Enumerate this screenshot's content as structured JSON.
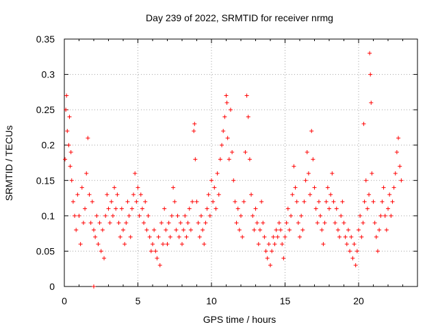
{
  "chart_data": {
    "type": "scatter",
    "title": "Day 239 of 2022, SRMTID for receiver nrmg",
    "xlabel": "GPS time / hours",
    "ylabel": "SRMTID / TECUs",
    "xlim": [
      0,
      24
    ],
    "ylim": [
      0,
      0.35
    ],
    "grid": true,
    "marker": "+",
    "color": "#ff0000",
    "x_ticks": [
      0,
      5,
      10,
      15,
      20
    ],
    "x_tick_labels": [
      "0",
      "5",
      "10",
      "15",
      "20"
    ],
    "y_ticks": [
      0,
      0.05,
      0.1,
      0.15,
      0.2,
      0.25,
      0.3,
      0.35
    ],
    "y_tick_labels": [
      "0",
      "0.05",
      "0.1",
      "0.15",
      "0.2",
      "0.25",
      "0.3",
      "0.35"
    ],
    "series": [
      {
        "name": "SRMTID",
        "points": [
          [
            0.05,
            0.18
          ],
          [
            0.1,
            0.25
          ],
          [
            0.15,
            0.27
          ],
          [
            0.2,
            0.22
          ],
          [
            0.3,
            0.2
          ],
          [
            0.35,
            0.24
          ],
          [
            0.4,
            0.17
          ],
          [
            0.45,
            0.19
          ],
          [
            0.5,
            0.15
          ],
          [
            0.6,
            0.12
          ],
          [
            0.7,
            0.1
          ],
          [
            0.8,
            0.08
          ],
          [
            0.9,
            0.13
          ],
          [
            1.0,
            0.1
          ],
          [
            1.1,
            0.06
          ],
          [
            1.2,
            0.14
          ],
          [
            1.3,
            0.09
          ],
          [
            1.4,
            0.11
          ],
          [
            1.5,
            0.16
          ],
          [
            1.6,
            0.21
          ],
          [
            1.7,
            0.13
          ],
          [
            1.8,
            0.09
          ],
          [
            1.9,
            0.12
          ],
          [
            2.0,
            0.08
          ],
          [
            2.0,
            0.0
          ],
          [
            2.1,
            0.07
          ],
          [
            2.2,
            0.1
          ],
          [
            2.3,
            0.06
          ],
          [
            2.4,
            0.09
          ],
          [
            2.5,
            0.05
          ],
          [
            2.6,
            0.08
          ],
          [
            2.7,
            0.04
          ],
          [
            2.8,
            0.1
          ],
          [
            2.9,
            0.13
          ],
          [
            3.0,
            0.11
          ],
          [
            3.1,
            0.09
          ],
          [
            3.2,
            0.12
          ],
          [
            3.3,
            0.1
          ],
          [
            3.4,
            0.14
          ],
          [
            3.5,
            0.11
          ],
          [
            3.6,
            0.13
          ],
          [
            3.7,
            0.09
          ],
          [
            3.8,
            0.07
          ],
          [
            3.9,
            0.11
          ],
          [
            4.0,
            0.08
          ],
          [
            4.1,
            0.06
          ],
          [
            4.2,
            0.09
          ],
          [
            4.3,
            0.12
          ],
          [
            4.4,
            0.1
          ],
          [
            4.5,
            0.07
          ],
          [
            4.6,
            0.11
          ],
          [
            4.7,
            0.13
          ],
          [
            4.8,
            0.16
          ],
          [
            4.9,
            0.12
          ],
          [
            5.0,
            0.14
          ],
          [
            5.1,
            0.1
          ],
          [
            5.2,
            0.13
          ],
          [
            5.3,
            0.11
          ],
          [
            5.4,
            0.09
          ],
          [
            5.5,
            0.12
          ],
          [
            5.6,
            0.08
          ],
          [
            5.7,
            0.1
          ],
          [
            5.8,
            0.07
          ],
          [
            5.9,
            0.05
          ],
          [
            6.0,
            0.06
          ],
          [
            6.1,
            0.08
          ],
          [
            6.2,
            0.05
          ],
          [
            6.3,
            0.04
          ],
          [
            6.4,
            0.07
          ],
          [
            6.5,
            0.03
          ],
          [
            6.6,
            0.09
          ],
          [
            6.7,
            0.06
          ],
          [
            6.8,
            0.11
          ],
          [
            6.9,
            0.08
          ],
          [
            7.0,
            0.06
          ],
          [
            7.1,
            0.09
          ],
          [
            7.2,
            0.07
          ],
          [
            7.3,
            0.1
          ],
          [
            7.4,
            0.14
          ],
          [
            7.5,
            0.12
          ],
          [
            7.6,
            0.08
          ],
          [
            7.7,
            0.1
          ],
          [
            7.8,
            0.07
          ],
          [
            7.9,
            0.09
          ],
          [
            8.0,
            0.06
          ],
          [
            8.1,
            0.08
          ],
          [
            8.2,
            0.1
          ],
          [
            8.3,
            0.07
          ],
          [
            8.4,
            0.09
          ],
          [
            8.5,
            0.11
          ],
          [
            8.6,
            0.08
          ],
          [
            8.7,
            0.12
          ],
          [
            8.8,
            0.22
          ],
          [
            8.85,
            0.23
          ],
          [
            8.9,
            0.18
          ],
          [
            9.0,
            0.12
          ],
          [
            9.1,
            0.09
          ],
          [
            9.2,
            0.07
          ],
          [
            9.3,
            0.1
          ],
          [
            9.4,
            0.08
          ],
          [
            9.5,
            0.06
          ],
          [
            9.6,
            0.09
          ],
          [
            9.7,
            0.11
          ],
          [
            9.8,
            0.13
          ],
          [
            9.9,
            0.1
          ],
          [
            10.0,
            0.15
          ],
          [
            10.1,
            0.12
          ],
          [
            10.2,
            0.14
          ],
          [
            10.3,
            0.11
          ],
          [
            10.4,
            0.16
          ],
          [
            10.5,
            0.13
          ],
          [
            10.6,
            0.18
          ],
          [
            10.7,
            0.2
          ],
          [
            10.8,
            0.22
          ],
          [
            10.9,
            0.24
          ],
          [
            11.0,
            0.27
          ],
          [
            11.05,
            0.26
          ],
          [
            11.1,
            0.21
          ],
          [
            11.2,
            0.18
          ],
          [
            11.3,
            0.25
          ],
          [
            11.4,
            0.19
          ],
          [
            11.5,
            0.15
          ],
          [
            11.6,
            0.12
          ],
          [
            11.7,
            0.09
          ],
          [
            11.8,
            0.11
          ],
          [
            11.9,
            0.08
          ],
          [
            12.0,
            0.1
          ],
          [
            12.1,
            0.07
          ],
          [
            12.2,
            0.12
          ],
          [
            12.3,
            0.19
          ],
          [
            12.4,
            0.27
          ],
          [
            12.5,
            0.24
          ],
          [
            12.6,
            0.18
          ],
          [
            12.7,
            0.13
          ],
          [
            12.8,
            0.1
          ],
          [
            12.9,
            0.08
          ],
          [
            13.0,
            0.11
          ],
          [
            13.1,
            0.09
          ],
          [
            13.2,
            0.06
          ],
          [
            13.3,
            0.08
          ],
          [
            13.4,
            0.12
          ],
          [
            13.5,
            0.09
          ],
          [
            13.6,
            0.07
          ],
          [
            13.7,
            0.05
          ],
          [
            13.8,
            0.04
          ],
          [
            13.9,
            0.06
          ],
          [
            14.0,
            0.03
          ],
          [
            14.1,
            0.05
          ],
          [
            14.2,
            0.07
          ],
          [
            14.3,
            0.06
          ],
          [
            14.4,
            0.08
          ],
          [
            14.5,
            0.07
          ],
          [
            14.6,
            0.09
          ],
          [
            14.7,
            0.08
          ],
          [
            14.8,
            0.06
          ],
          [
            14.9,
            0.04
          ],
          [
            15.0,
            0.07
          ],
          [
            15.1,
            0.09
          ],
          [
            15.2,
            0.11
          ],
          [
            15.3,
            0.08
          ],
          [
            15.4,
            0.1
          ],
          [
            15.5,
            0.13
          ],
          [
            15.6,
            0.17
          ],
          [
            15.7,
            0.14
          ],
          [
            15.8,
            0.12
          ],
          [
            15.9,
            0.09
          ],
          [
            16.0,
            0.07
          ],
          [
            16.1,
            0.1
          ],
          [
            16.2,
            0.08
          ],
          [
            16.3,
            0.12
          ],
          [
            16.4,
            0.15
          ],
          [
            16.5,
            0.19
          ],
          [
            16.6,
            0.16
          ],
          [
            16.7,
            0.13
          ],
          [
            16.8,
            0.22
          ],
          [
            16.9,
            0.18
          ],
          [
            17.0,
            0.14
          ],
          [
            17.1,
            0.11
          ],
          [
            17.2,
            0.09
          ],
          [
            17.3,
            0.12
          ],
          [
            17.4,
            0.1
          ],
          [
            17.5,
            0.08
          ],
          [
            17.6,
            0.06
          ],
          [
            17.7,
            0.09
          ],
          [
            17.8,
            0.12
          ],
          [
            17.9,
            0.14
          ],
          [
            18.0,
            0.11
          ],
          [
            18.1,
            0.13
          ],
          [
            18.2,
            0.16
          ],
          [
            18.3,
            0.12
          ],
          [
            18.4,
            0.09
          ],
          [
            18.5,
            0.11
          ],
          [
            18.6,
            0.08
          ],
          [
            18.7,
            0.07
          ],
          [
            18.8,
            0.1
          ],
          [
            18.9,
            0.12
          ],
          [
            19.0,
            0.09
          ],
          [
            19.1,
            0.07
          ],
          [
            19.2,
            0.06
          ],
          [
            19.3,
            0.08
          ],
          [
            19.4,
            0.05
          ],
          [
            19.5,
            0.07
          ],
          [
            19.6,
            0.04
          ],
          [
            19.7,
            0.06
          ],
          [
            19.8,
            0.03
          ],
          [
            19.9,
            0.05
          ],
          [
            20.0,
            0.08
          ],
          [
            20.1,
            0.1
          ],
          [
            20.2,
            0.07
          ],
          [
            20.3,
            0.09
          ],
          [
            20.35,
            0.23
          ],
          [
            20.4,
            0.12
          ],
          [
            20.5,
            0.15
          ],
          [
            20.6,
            0.11
          ],
          [
            20.7,
            0.13
          ],
          [
            20.75,
            0.33
          ],
          [
            20.8,
            0.3
          ],
          [
            20.85,
            0.26
          ],
          [
            20.9,
            0.16
          ],
          [
            21.0,
            0.12
          ],
          [
            21.1,
            0.09
          ],
          [
            21.2,
            0.07
          ],
          [
            21.3,
            0.05
          ],
          [
            21.4,
            0.08
          ],
          [
            21.5,
            0.1
          ],
          [
            21.6,
            0.12
          ],
          [
            21.7,
            0.14
          ],
          [
            21.8,
            0.1
          ],
          [
            21.9,
            0.08
          ],
          [
            22.0,
            0.11
          ],
          [
            22.1,
            0.13
          ],
          [
            22.2,
            0.1
          ],
          [
            22.3,
            0.12
          ],
          [
            22.4,
            0.14
          ],
          [
            22.5,
            0.16
          ],
          [
            22.6,
            0.19
          ],
          [
            22.7,
            0.21
          ],
          [
            22.8,
            0.17
          ],
          [
            22.9,
            0.15
          ]
        ]
      }
    ]
  }
}
